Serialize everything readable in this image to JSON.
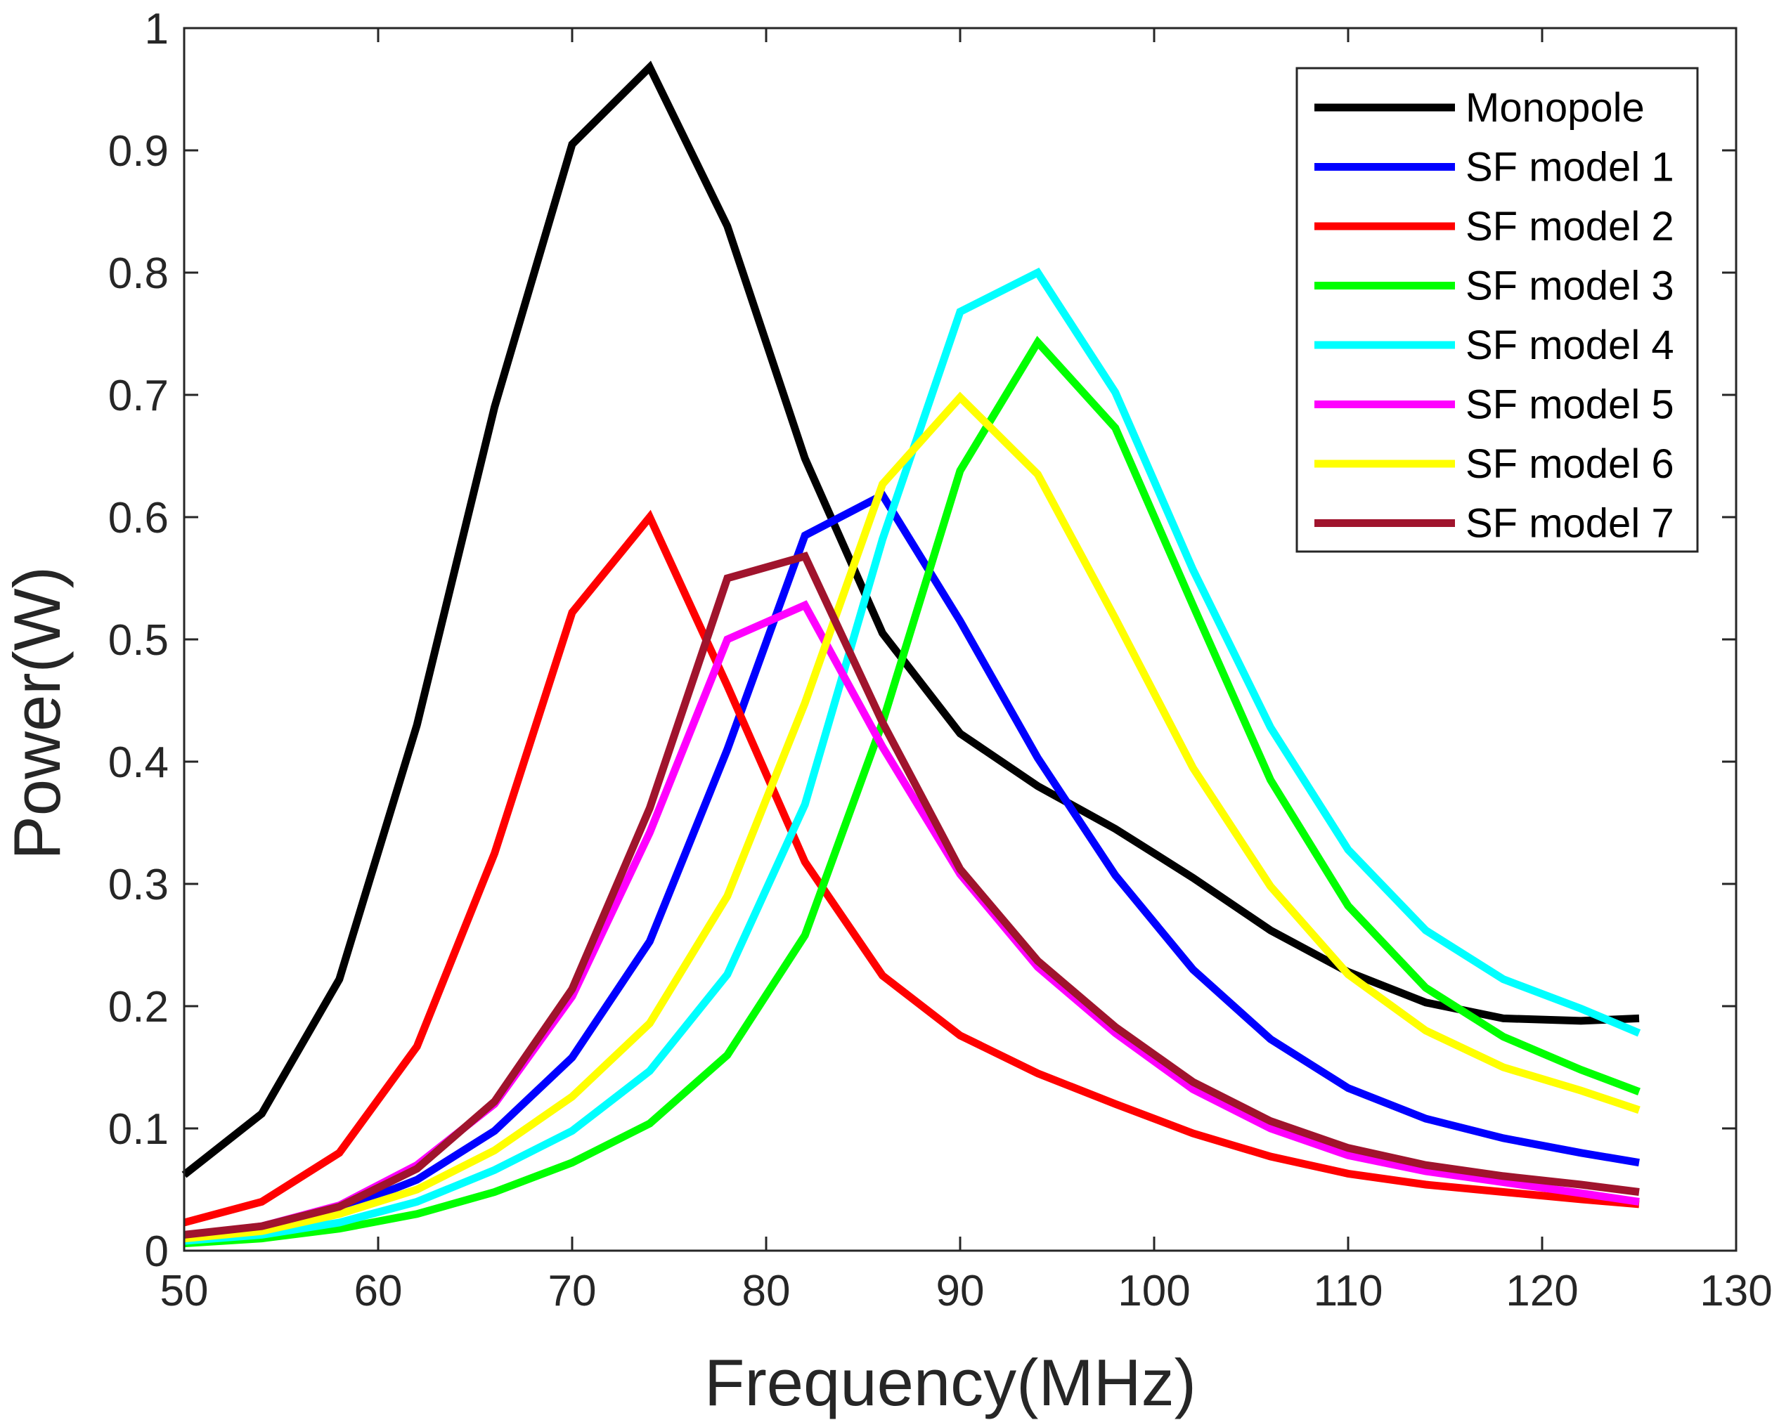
{
  "chart_data": {
    "type": "line",
    "title": "",
    "xlabel": "Frequency(MHz)",
    "ylabel": "Power(W)",
    "xlim": [
      50,
      130
    ],
    "ylim": [
      0,
      1
    ],
    "xticks": [
      50,
      60,
      70,
      80,
      90,
      100,
      110,
      120,
      130
    ],
    "yticks": [
      0,
      0.1,
      0.2,
      0.3,
      0.4,
      0.5,
      0.6,
      0.7,
      0.8,
      0.9,
      1
    ],
    "xtick_labels": [
      "50",
      "60",
      "70",
      "80",
      "90",
      "100",
      "110",
      "120",
      "130"
    ],
    "ytick_labels": [
      "0",
      "0.1",
      "0.2",
      "0.3",
      "0.4",
      "0.5",
      "0.6",
      "0.7",
      "0.8",
      "0.9",
      "1"
    ],
    "grid": false,
    "legend_position": "top-right",
    "x": [
      50,
      54,
      58,
      62,
      66,
      70,
      74,
      78,
      82,
      86,
      90,
      94,
      98,
      102,
      106,
      110,
      114,
      118,
      122,
      125
    ],
    "series": [
      {
        "name": "Monopole",
        "color": "#000000",
        "values": [
          0.062,
          0.112,
          0.222,
          0.43,
          0.69,
          0.905,
          0.968,
          0.838,
          0.648,
          0.505,
          0.423,
          0.38,
          0.345,
          0.305,
          0.262,
          0.228,
          0.203,
          0.19,
          0.188,
          0.19
        ]
      },
      {
        "name": "SF model 1",
        "color": "#0000ff",
        "values": [
          0.012,
          0.018,
          0.033,
          0.058,
          0.098,
          0.158,
          0.253,
          0.41,
          0.585,
          0.618,
          0.515,
          0.403,
          0.307,
          0.23,
          0.173,
          0.133,
          0.108,
          0.092,
          0.08,
          0.072
        ]
      },
      {
        "name": "SF model 2",
        "color": "#ff0000",
        "values": [
          0.023,
          0.04,
          0.08,
          0.167,
          0.325,
          0.522,
          0.6,
          0.462,
          0.318,
          0.225,
          0.176,
          0.145,
          0.12,
          0.096,
          0.077,
          0.063,
          0.054,
          0.048,
          0.042,
          0.038
        ]
      },
      {
        "name": "SF model 3",
        "color": "#00ff00",
        "values": [
          0.006,
          0.01,
          0.018,
          0.03,
          0.048,
          0.072,
          0.104,
          0.16,
          0.258,
          0.432,
          0.638,
          0.743,
          0.673,
          0.528,
          0.385,
          0.282,
          0.215,
          0.175,
          0.148,
          0.13
        ]
      },
      {
        "name": "SF model 4",
        "color": "#00ffff",
        "values": [
          0.008,
          0.013,
          0.023,
          0.04,
          0.066,
          0.098,
          0.147,
          0.226,
          0.365,
          0.582,
          0.768,
          0.8,
          0.702,
          0.557,
          0.428,
          0.328,
          0.262,
          0.222,
          0.198,
          0.178
        ]
      },
      {
        "name": "SF model 5",
        "color": "#ff00ff",
        "values": [
          0.012,
          0.02,
          0.037,
          0.07,
          0.12,
          0.208,
          0.342,
          0.5,
          0.528,
          0.412,
          0.308,
          0.232,
          0.178,
          0.132,
          0.1,
          0.078,
          0.065,
          0.056,
          0.047,
          0.04
        ]
      },
      {
        "name": "SF model 6",
        "color": "#ffff00",
        "values": [
          0.01,
          0.016,
          0.03,
          0.05,
          0.082,
          0.126,
          0.186,
          0.29,
          0.448,
          0.627,
          0.698,
          0.635,
          0.517,
          0.395,
          0.298,
          0.226,
          0.18,
          0.15,
          0.131,
          0.115
        ]
      },
      {
        "name": "SF model 7",
        "color": "#a0142d",
        "values": [
          0.013,
          0.02,
          0.036,
          0.067,
          0.122,
          0.214,
          0.362,
          0.55,
          0.568,
          0.432,
          0.312,
          0.237,
          0.183,
          0.138,
          0.106,
          0.084,
          0.07,
          0.061,
          0.054,
          0.048
        ]
      }
    ]
  }
}
